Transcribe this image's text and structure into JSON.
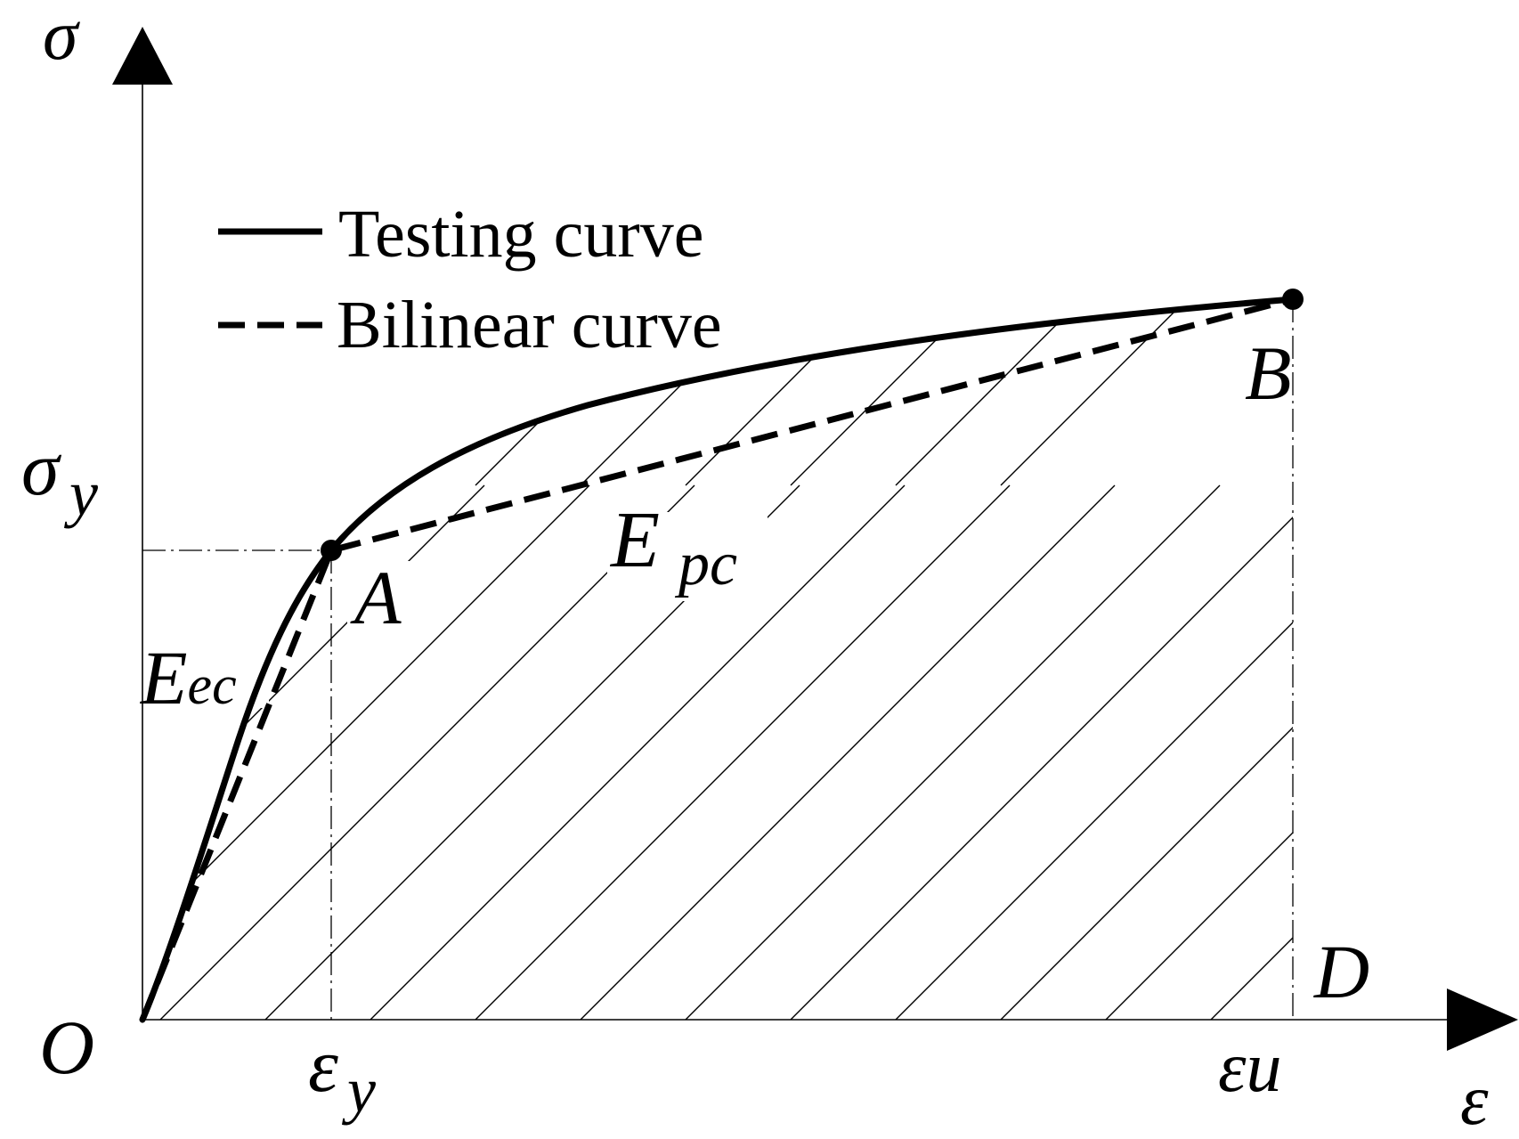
{
  "labels": {
    "sigma_axis": "σ",
    "epsilon_axis": "ε",
    "origin": "O",
    "sigma_y_main": "σ",
    "sigma_y_sub": "y",
    "eps_y_main": "ε",
    "eps_y_sub": "y",
    "eps_u": "εu",
    "point_a": "A",
    "point_b": "B",
    "point_d": "D",
    "e_ec": "Eec",
    "e_pc_main": "E",
    "e_pc_sub": "pc"
  },
  "legend": {
    "testing": "Testing curve",
    "bilinear": "Bilinear curve"
  },
  "colors": {
    "ink": "#000000",
    "background": "#ffffff"
  }
}
